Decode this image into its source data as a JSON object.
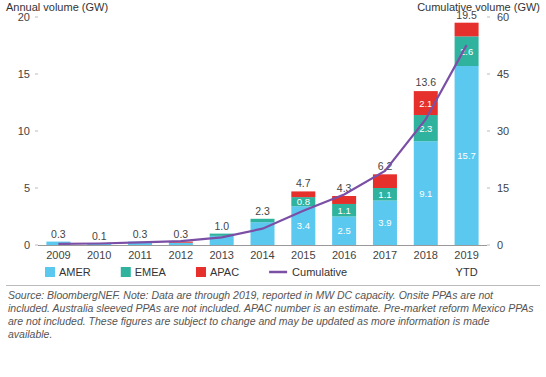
{
  "chart_data": {
    "type": "bar",
    "stacked": true,
    "data_labels": true,
    "grid": false,
    "legend": "bottom",
    "y_label": "Annual volume (GW)",
    "y2_label": "Cumulative volume (GW)",
    "categories": [
      "2009",
      "2010",
      "2011",
      "2012",
      "2013",
      "2014",
      "2015",
      "2016",
      "2017",
      "2018",
      "2019"
    ],
    "series": [
      {
        "name": "AMER",
        "color": "#5bc8ef",
        "values": [
          0.3,
          0.1,
          0.3,
          0.2,
          0.8,
          2.0,
          3.4,
          2.5,
          3.9,
          9.1,
          15.7
        ],
        "value_labels": [
          null,
          null,
          null,
          null,
          null,
          null,
          "3.4",
          "2.5",
          "3.9",
          "9.1",
          "15.7"
        ]
      },
      {
        "name": "EMEA",
        "color": "#2fb39e",
        "values": [
          0,
          0,
          0,
          0,
          0.2,
          0.3,
          0.8,
          1.1,
          1.1,
          2.3,
          2.6
        ],
        "value_labels": [
          null,
          null,
          null,
          null,
          null,
          null,
          "0.8",
          "1.1",
          "1.1",
          "2.3",
          "2.6"
        ]
      },
      {
        "name": "APAC",
        "color": "#e5302b",
        "values": [
          0,
          0,
          0,
          0.1,
          0,
          0,
          0.5,
          0.7,
          1.2,
          2.1,
          1.2
        ],
        "value_labels": [
          null,
          null,
          null,
          null,
          null,
          null,
          null,
          null,
          null,
          "2.1",
          null
        ]
      },
      {
        "name": "Cumulative",
        "type": "line",
        "axis": "y2",
        "color": "#7b4fa6",
        "marker": "none",
        "values": [
          0.3,
          0.4,
          0.7,
          1.0,
          2.0,
          4.3,
          9.0,
          13.3,
          19.5,
          33.1,
          52.6
        ]
      }
    ],
    "totals": [
      0.3,
      0.1,
      0.3,
      0.3,
      1,
      2.3,
      4.7,
      4.3,
      6.2,
      13.6,
      19.5
    ],
    "total_labels": [
      "0.3",
      "0.1",
      "0.3",
      "0.3",
      "1.0",
      "2.3",
      "4.7",
      "4.3",
      "6.2",
      "13.6",
      "19.5"
    ],
    "ylim": [
      0,
      20
    ],
    "yticks": [
      0,
      5,
      10,
      15,
      20
    ],
    "y2lim": [
      0,
      60
    ],
    "y2ticks": [
      0,
      15,
      30,
      45,
      60
    ],
    "annotations": [
      "YTD"
    ],
    "note": "Source: BloombergNEF. Note: Data are through 2019, reported in MW DC capacity. Onsite PPAs are not included. Australia sleeved PPAs are not included. APAC number is an estimate. Pre-market reform Mexico PPAs are not included. These figures are subject to change and may be updated as more information is made available."
  }
}
